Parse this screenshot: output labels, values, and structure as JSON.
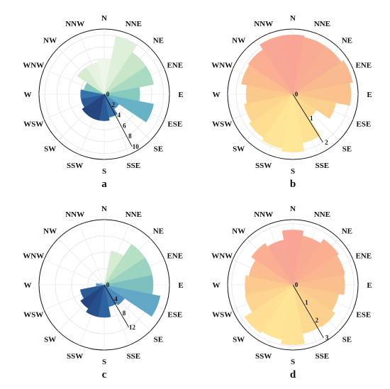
{
  "chart_data": [
    {
      "type": "polar-bar",
      "panel_label": "a",
      "directions": [
        "N",
        "NNE",
        "NE",
        "ENE",
        "E",
        "ESE",
        "SE",
        "SSE",
        "S",
        "SSW",
        "SW",
        "WSW",
        "W",
        "WNW",
        "NW",
        "NNW"
      ],
      "values": [
        6,
        10,
        8.5,
        8.5,
        6,
        8.5,
        3,
        4,
        4.5,
        4.5,
        4.5,
        4,
        4,
        3.5,
        5.5,
        5.5
      ],
      "colors": [
        "#eef6ea",
        "#def0da",
        "#c7e7c8",
        "#a9dbc3",
        "#87cabe",
        "#67b2c7",
        "#4a93bf",
        "#3474ab",
        "#2a5b97",
        "#24457f",
        "#24457f",
        "#2a5b97",
        "#3474ab",
        "#86c7bd",
        "#d6ecd0",
        "#e6f3e2"
      ],
      "rmax": 11,
      "ring_ticks": [
        0,
        2,
        4,
        6,
        8,
        10
      ],
      "tick_angle_deg": 152
    },
    {
      "type": "polar-bar",
      "panel_label": "b",
      "directions": [
        "N",
        "NNE",
        "NE",
        "ENE",
        "E",
        "ESE",
        "SE",
        "SSE",
        "S",
        "SSW",
        "SW",
        "WSW",
        "W",
        "WNW",
        "NW",
        "NNW"
      ],
      "values": [
        2.1,
        2.05,
        2.05,
        2.15,
        2.05,
        1.55,
        1.0,
        1.75,
        2.05,
        1.95,
        1.85,
        1.75,
        1.65,
        1.85,
        1.9,
        2.1
      ],
      "colors": [
        "#f9a495",
        "#f9ab93",
        "#f9af91",
        "#faba8f",
        "#fbc28d",
        "#fbd08d",
        "#fcd98f",
        "#fde293",
        "#fee898",
        "#fee496",
        "#fedd91",
        "#fed58e",
        "#fcc98d",
        "#fbbd8e",
        "#faaf92",
        "#f9a795"
      ],
      "rmax": 2.3,
      "ring_ticks": [
        0,
        1,
        2
      ],
      "tick_angle_deg": 148
    },
    {
      "type": "polar-bar",
      "panel_label": "c",
      "directions": [
        "N",
        "NNE",
        "NE",
        "ENE",
        "E",
        "ESE",
        "SE",
        "SSE",
        "S",
        "SSW",
        "SW",
        "WSW",
        "W",
        "WNW",
        "NW",
        "NNW"
      ],
      "values": [
        0,
        8.5,
        12,
        12,
        12,
        14,
        6,
        5.5,
        8,
        8,
        7,
        6,
        2,
        1,
        0,
        0
      ],
      "colors": [
        "#eef6ea",
        "#d5ecd2",
        "#b5e0c4",
        "#9ad3c0",
        "#7ec0c0",
        "#62a7c6",
        "#4b8cbe",
        "#3b76b0",
        "#2d62a1",
        "#25508c",
        "#24457f",
        "#2a5b97",
        "#5d9ec6",
        "#9bd0c0",
        "#e0f1dc",
        "#eef6ea"
      ],
      "rmax": 16,
      "ring_ticks": [
        0,
        4,
        8,
        12
      ],
      "tick_angle_deg": 150
    },
    {
      "type": "polar-bar",
      "panel_label": "d",
      "directions": [
        "N",
        "NNE",
        "NE",
        "ENE",
        "E",
        "ESE",
        "SE",
        "SSE",
        "S",
        "SSW",
        "SW",
        "WSW",
        "W",
        "WNW",
        "NW",
        "NNW"
      ],
      "values": [
        2.7,
        2.45,
        2.7,
        2.6,
        2.55,
        2.3,
        2.5,
        2.45,
        2.95,
        2.75,
        2.85,
        2.4,
        2.35,
        2.2,
        2.45,
        2.25
      ],
      "colors": [
        "#f9a495",
        "#f9aa93",
        "#faaf91",
        "#fab78f",
        "#fbbf8e",
        "#fbc88d",
        "#fcd18d",
        "#fdda90",
        "#fee296",
        "#fee596",
        "#fedf93",
        "#fdd590",
        "#fcc98e",
        "#fbbc8f",
        "#faaf92",
        "#f9a795"
      ],
      "rmax": 3.2,
      "ring_ticks": [
        0,
        1,
        2,
        3
      ],
      "tick_angle_deg": 150
    }
  ]
}
